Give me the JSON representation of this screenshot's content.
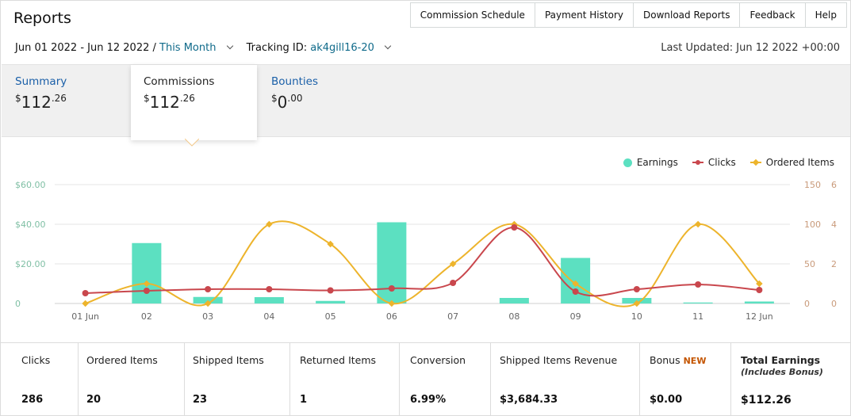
{
  "header": {
    "title": "Reports",
    "nav": [
      "Commission Schedule",
      "Payment History",
      "Download Reports",
      "Feedback",
      "Help"
    ]
  },
  "filters": {
    "date_range": "Jun 01 2022 - Jun 12 2022 /",
    "period": "This Month",
    "tracking_label": "Tracking ID:",
    "tracking_id": "ak4gill16-20",
    "last_updated": "Last Updated: Jun 12 2022 +00:00"
  },
  "tabs": [
    {
      "label": "Summary",
      "currency": "$",
      "whole": "112",
      "cents": ".26"
    },
    {
      "label": "Commissions",
      "currency": "$",
      "whole": "112",
      "cents": ".26"
    },
    {
      "label": "Bounties",
      "currency": "$",
      "whole": "0",
      "cents": ".00"
    }
  ],
  "chart_data": {
    "type": "bar",
    "categories": [
      "01 Jun",
      "02",
      "03",
      "04",
      "05",
      "06",
      "07",
      "08",
      "09",
      "10",
      "11",
      "12 Jun"
    ],
    "left_ticks": [
      "$60.00",
      "$40.00",
      "$20.00",
      "0"
    ],
    "right_ticks_clicks": [
      "150",
      "100",
      "50",
      "0"
    ],
    "right_ticks_items": [
      "6",
      "4",
      "2",
      "0"
    ],
    "ylim_earnings": [
      0,
      60
    ],
    "ylim_clicks": [
      0,
      150
    ],
    "ylim_items": [
      0,
      6
    ],
    "legend_position": "top-right",
    "series": [
      {
        "name": "Earnings",
        "type": "bar",
        "color": "#5ce0c1",
        "values": [
          0,
          30.5,
          3.3,
          3.2,
          1.3,
          41,
          0,
          2.8,
          23,
          2.8,
          0.5,
          1.0
        ]
      },
      {
        "name": "Clicks",
        "type": "line",
        "color": "#c9474d",
        "values": [
          13,
          16,
          18,
          18,
          16.5,
          19,
          26,
          96,
          15,
          18,
          24,
          17
        ]
      },
      {
        "name": "Ordered Items",
        "type": "line",
        "color": "#edb42c",
        "values": [
          0,
          1,
          0,
          4,
          3,
          0,
          2,
          4,
          1,
          0,
          4,
          1
        ]
      }
    ]
  },
  "stats": [
    {
      "label": "Clicks",
      "value": "286"
    },
    {
      "label": "Ordered Items",
      "value": "20"
    },
    {
      "label": "Shipped Items",
      "value": "23"
    },
    {
      "label": "Returned Items",
      "value": "1"
    },
    {
      "label": "Conversion",
      "value": "6.99%"
    },
    {
      "label": "Shipped Items Revenue",
      "value": "$3,684.33"
    },
    {
      "label": "Bonus",
      "badge": "NEW",
      "value": "$0.00"
    },
    {
      "label": "Total Earnings",
      "sub": "(Includes Bonus)",
      "value": "$112.26"
    }
  ]
}
